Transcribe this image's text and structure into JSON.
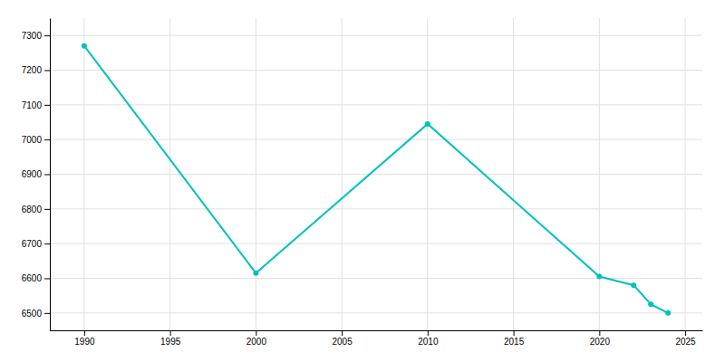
{
  "chart_data": {
    "type": "line",
    "x": [
      1990,
      2000,
      2010,
      2020,
      2022,
      2023,
      2024
    ],
    "values": [
      7270,
      6615,
      7045,
      6605,
      6580,
      6525,
      6500
    ],
    "color": "#00C0C0",
    "marker": "circle",
    "xlim": [
      1988,
      2026
    ],
    "ylim": [
      6450,
      7350
    ],
    "xticks": [
      1990,
      1995,
      2000,
      2005,
      2010,
      2015,
      2020,
      2025
    ],
    "yticks": [
      6500,
      6600,
      6700,
      6800,
      6900,
      7000,
      7100,
      7200,
      7300
    ],
    "grid": true
  }
}
